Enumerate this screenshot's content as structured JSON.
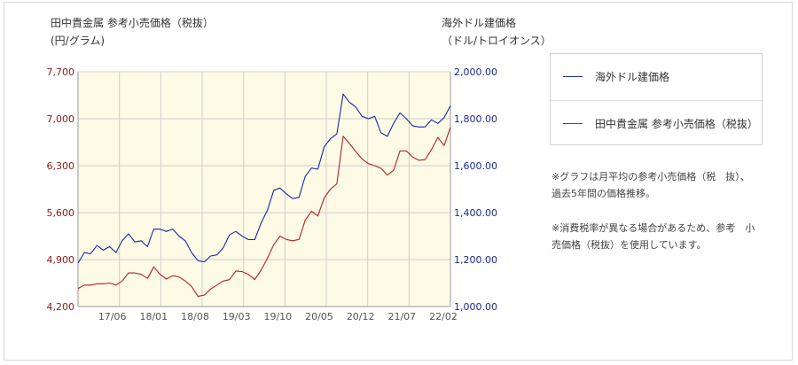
{
  "header": {
    "left_title_line1": "田中貴金属 参考小売価格（税抜）",
    "left_title_line2": "(円/グラム)",
    "right_title_line1": "海外ドル建価格",
    "right_title_line2": "（ドル/トロイオンス）"
  },
  "notes": [
    "※グラフは月平均の参考小売価格（税　抜）、過去5年間の価格推移。",
    "※消費税率が異なる場合があるため、参考　小売価格（税抜）を使用しています。"
  ],
  "colors": {
    "plot_bg": "#fdfae6",
    "grid": "#cfcfcf",
    "red": "#b22222",
    "blue": "#1a2aa6",
    "left_axis_text": "#8b1a1a",
    "right_axis_text": "#1a2a8b"
  },
  "chart_data": {
    "type": "line",
    "legend": [
      "海外ドル建価格",
      "田中貴金属 参考小売価格（税抜）"
    ],
    "legend_position": "right",
    "grid": true,
    "x_ticks": [
      "17/06",
      "18/01",
      "18/08",
      "19/03",
      "19/10",
      "20/05",
      "20/12",
      "21/07",
      "22/02"
    ],
    "y_left": {
      "ticks": [
        "7,700",
        "7,000",
        "6,300",
        "5,600",
        "4,900",
        "4,200"
      ],
      "range": [
        4200,
        7700
      ]
    },
    "y_right": {
      "ticks": [
        "2,000.00",
        "1,800.00",
        "1,600.00",
        "1,400.00",
        "1,200.00",
        "1,000.00"
      ],
      "range": [
        1000,
        2000
      ]
    },
    "series": [
      {
        "name": "海外ドル建価格",
        "axis": "right",
        "color": "#1a2aa6",
        "values": [
          1185,
          1230,
          1225,
          1260,
          1240,
          1255,
          1230,
          1280,
          1310,
          1275,
          1280,
          1255,
          1330,
          1330,
          1320,
          1330,
          1300,
          1280,
          1230,
          1195,
          1190,
          1215,
          1220,
          1250,
          1305,
          1320,
          1300,
          1285,
          1285,
          1355,
          1410,
          1495,
          1505,
          1480,
          1460,
          1465,
          1555,
          1590,
          1585,
          1680,
          1715,
          1735,
          1905,
          1870,
          1850,
          1810,
          1800,
          1810,
          1740,
          1725,
          1780,
          1825,
          1800,
          1770,
          1765,
          1765,
          1795,
          1780,
          1805,
          1855
        ]
      },
      {
        "name": "田中貴金属 参考小売価格（税抜）",
        "axis": "left",
        "color": "#b22222",
        "values": [
          4470,
          4520,
          4520,
          4540,
          4540,
          4550,
          4520,
          4580,
          4700,
          4700,
          4680,
          4620,
          4790,
          4680,
          4610,
          4660,
          4640,
          4580,
          4500,
          4350,
          4370,
          4460,
          4520,
          4580,
          4600,
          4730,
          4720,
          4680,
          4600,
          4740,
          4920,
          5120,
          5250,
          5200,
          5180,
          5200,
          5490,
          5620,
          5550,
          5820,
          5950,
          6030,
          6740,
          6630,
          6510,
          6400,
          6330,
          6300,
          6260,
          6160,
          6230,
          6520,
          6520,
          6430,
          6380,
          6390,
          6540,
          6720,
          6600,
          6870
        ]
      }
    ]
  }
}
